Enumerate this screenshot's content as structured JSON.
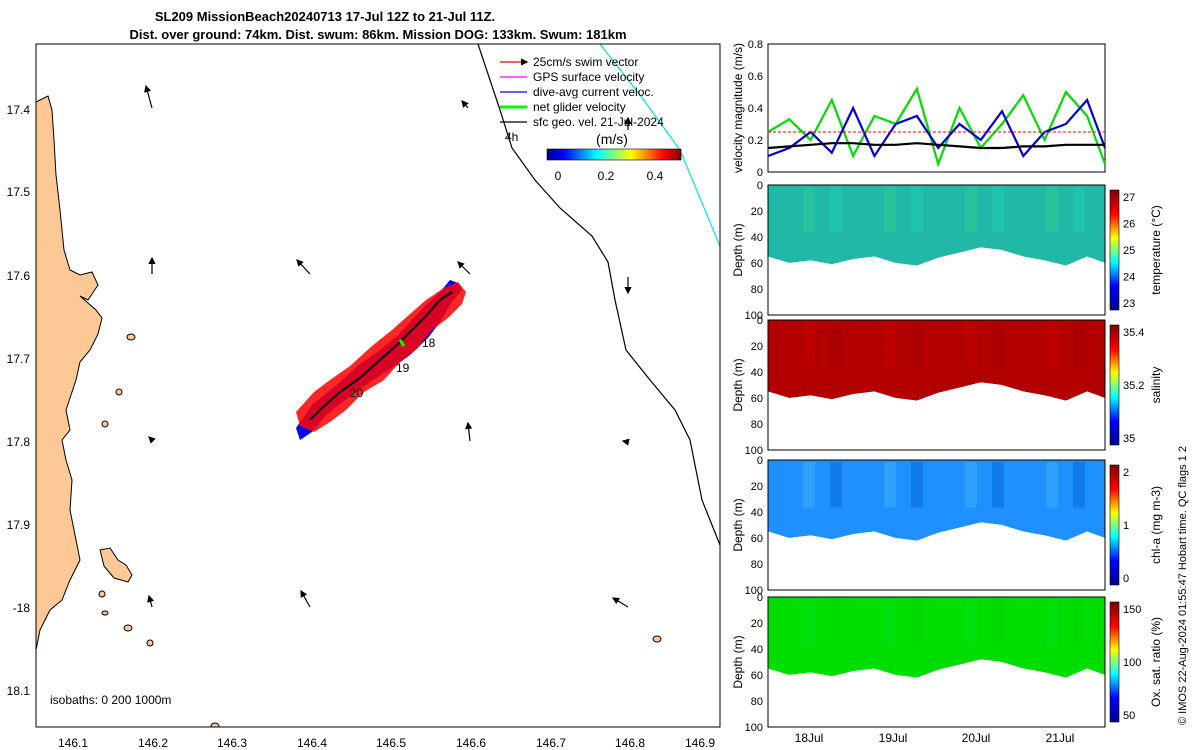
{
  "title": {
    "line1": "SL209 MissionBeach20240713 17-Jul 12Z to 21-Jul 11Z.",
    "line2": "Dist. over ground: 74km. Dist. swum: 86km. Mission DOG: 133km. Swum: 181km"
  },
  "map": {
    "lon_ticks": [
      "146.1",
      "146.2",
      "146.3",
      "146.4",
      "146.5",
      "146.6",
      "146.7",
      "146.8",
      "146.9"
    ],
    "lat_ticks": [
      "17.4",
      "17.5",
      "17.6",
      "17.7",
      "17.8",
      "17.9",
      "-18",
      "18.1"
    ],
    "legend": [
      {
        "label": "25cm/s swim vector",
        "color": "#ff0000"
      },
      {
        "label": "GPS surface velocity",
        "color": "#ff00ff"
      },
      {
        "label": "dive-avg current veloc.",
        "color": "#0000ff"
      },
      {
        "label": "net glider velocity",
        "color": "#00ff00"
      },
      {
        "label": "sfc geo. vel. 21-Jul-2024",
        "color": "#000000"
      }
    ],
    "colorbar_title": "(m/s)",
    "colorbar_ticks": [
      "0",
      "0.2",
      "0.4"
    ],
    "isobaths_label": "isobaths: 0    200  1000m",
    "time_labels": [
      "18",
      "19",
      "20",
      "4h"
    ],
    "land_color": "#fbc896"
  },
  "right_panels": {
    "velocity": {
      "ylabel": "velocity magnitude (m/s)",
      "yticks": [
        "0",
        "0.2",
        "0.4",
        "0.6",
        "0.8"
      ]
    },
    "temperature": {
      "ylabel": "Depth (m)",
      "cbar_label": "temperature (°C)",
      "cbar_ticks": [
        "27",
        "26",
        "25",
        "24",
        "23"
      ]
    },
    "salinity": {
      "ylabel": "Depth (m)",
      "cbar_label": "salinity",
      "cbar_ticks": [
        "35.4",
        "35.2",
        "35"
      ]
    },
    "chla": {
      "ylabel": "Depth (m)",
      "cbar_label": "chl-a (mg m-3)",
      "cbar_ticks": [
        "2",
        "1",
        "0"
      ]
    },
    "oxygen": {
      "ylabel": "Depth (m)",
      "cbar_label": "Ox. sat. ratio (%)",
      "cbar_ticks": [
        "150",
        "100",
        "50"
      ]
    },
    "depth_ticks": [
      "0",
      "20",
      "40",
      "60",
      "80",
      "100"
    ],
    "time_ticks": [
      "18Jul",
      "19Jul",
      "20Jul",
      "21Jul"
    ]
  },
  "footer": "© IMOS 22-Aug-2024 01:55:47 Hobart time. QC flags 1  2",
  "chart_data": {
    "type": "line",
    "title": "velocity magnitude",
    "x_days": [
      17.5,
      17.75,
      18.0,
      18.25,
      18.5,
      18.75,
      19.0,
      19.25,
      19.5,
      19.75,
      20.0,
      20.25,
      20.5,
      20.75,
      21.0,
      21.25,
      21.46
    ],
    "series": [
      {
        "name": "net glider velocity",
        "color": "#00dd00",
        "values": [
          0.25,
          0.33,
          0.2,
          0.45,
          0.1,
          0.35,
          0.3,
          0.52,
          0.05,
          0.4,
          0.15,
          0.3,
          0.48,
          0.2,
          0.5,
          0.35,
          0.05
        ]
      },
      {
        "name": "dive-avg current veloc.",
        "color": "#0000dd",
        "values": [
          0.1,
          0.15,
          0.25,
          0.12,
          0.4,
          0.1,
          0.3,
          0.35,
          0.15,
          0.3,
          0.2,
          0.38,
          0.1,
          0.25,
          0.3,
          0.45,
          0.15
        ]
      },
      {
        "name": "sfc geo. vel.",
        "color": "#000000",
        "values": [
          0.15,
          0.16,
          0.17,
          0.18,
          0.18,
          0.17,
          0.17,
          0.18,
          0.17,
          0.16,
          0.15,
          0.15,
          0.16,
          0.16,
          0.17,
          0.17,
          0.17
        ]
      },
      {
        "name": "25cm/s swim",
        "color": "#ff0000",
        "values": [
          0.25,
          0.25,
          0.25,
          0.25,
          0.25,
          0.25,
          0.25,
          0.25,
          0.25,
          0.25,
          0.25,
          0.25,
          0.25,
          0.25,
          0.25,
          0.25,
          0.25
        ]
      }
    ],
    "ylim": [
      0,
      0.8
    ],
    "xlim": [
      17.5,
      21.46
    ],
    "ylabel": "velocity magnitude (m/s)",
    "bottom_depth_m": [
      55,
      60,
      58,
      61,
      57,
      55,
      60,
      62,
      56,
      52,
      48,
      50,
      55,
      58,
      62,
      55,
      60
    ]
  }
}
